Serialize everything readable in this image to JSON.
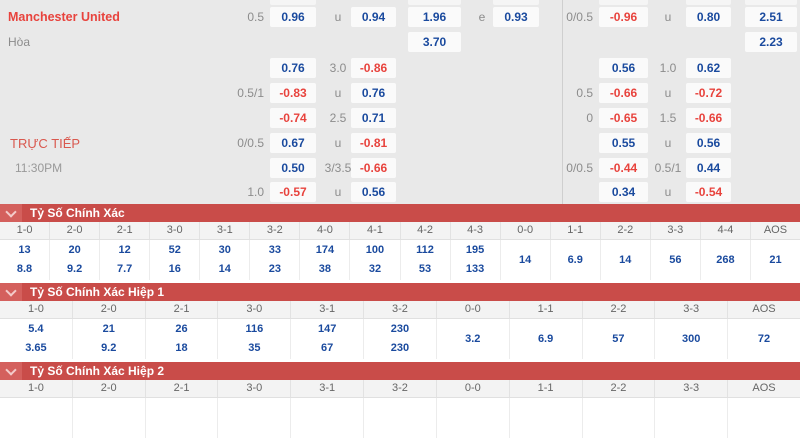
{
  "odds_panel": {
    "home_team": "Manchester United",
    "draw_label": "Hòa",
    "live_label": "TRỰC TIẾP",
    "time_label": "11:30PM",
    "rows": [
      {
        "hdp": "0.5",
        "hdp_odds": "0.96",
        "ou": "u",
        "ou_odds": "0.94",
        "x12": "1.96",
        "eh": "e",
        "eh_odds": "0.93",
        "r_hdp": "0/0.5",
        "r_hdp_odds": "-0.96",
        "r_ou": "u",
        "r_ou_odds": "0.80",
        "r_x12": "2.51"
      },
      {
        "x12": "3.70",
        "r_x12": "2.23"
      },
      {
        "hdp_odds": "0.76",
        "ou": "3.0",
        "ou_odds": "-0.86",
        "r_hdp_odds": "0.56",
        "r_ou": "1.0",
        "r_ou_odds": "0.62"
      },
      {
        "hdp": "0.5/1",
        "hdp_odds": "-0.83",
        "ou": "u",
        "ou_odds": "0.76",
        "r_hdp": "0.5",
        "r_hdp_odds": "-0.66",
        "r_ou": "u",
        "r_ou_odds": "-0.72"
      },
      {
        "hdp_odds": "-0.74",
        "ou": "2.5",
        "ou_odds": "0.71",
        "r_hdp": "0",
        "r_hdp_odds": "-0.65",
        "r_ou": "1.5",
        "r_ou_odds": "-0.66"
      },
      {
        "hdp": "0/0.5",
        "hdp_odds": "0.67",
        "ou": "u",
        "ou_odds": "-0.81",
        "r_hdp_odds": "0.55",
        "r_ou": "u",
        "r_ou_odds": "0.56"
      },
      {
        "hdp_odds": "0.50",
        "ou": "3/3.5",
        "ou_odds": "-0.66",
        "r_hdp": "0/0.5",
        "r_hdp_odds": "-0.44",
        "r_ou": "0.5/1",
        "r_ou_odds": "0.44"
      },
      {
        "hdp": "1.0",
        "hdp_odds": "-0.57",
        "ou": "u",
        "ou_odds": "0.56",
        "r_hdp_odds": "0.34",
        "r_ou": "u",
        "r_ou_odds": "-0.54"
      }
    ]
  },
  "sections": [
    {
      "title": "Tỷ Số Chính Xác",
      "columns": [
        {
          "score": "1-0",
          "odds": [
            "13",
            "8.8"
          ]
        },
        {
          "score": "2-0",
          "odds": [
            "20",
            "9.2"
          ]
        },
        {
          "score": "2-1",
          "odds": [
            "12",
            "7.7"
          ]
        },
        {
          "score": "3-0",
          "odds": [
            "52",
            "16"
          ]
        },
        {
          "score": "3-1",
          "odds": [
            "30",
            "14"
          ]
        },
        {
          "score": "3-2",
          "odds": [
            "33",
            "23"
          ]
        },
        {
          "score": "4-0",
          "odds": [
            "174",
            "38"
          ]
        },
        {
          "score": "4-1",
          "odds": [
            "100",
            "32"
          ]
        },
        {
          "score": "4-2",
          "odds": [
            "112",
            "53"
          ]
        },
        {
          "score": "4-3",
          "odds": [
            "195",
            "133"
          ]
        },
        {
          "score": "0-0",
          "odds": [
            "14"
          ]
        },
        {
          "score": "1-1",
          "odds": [
            "6.9"
          ]
        },
        {
          "score": "2-2",
          "odds": [
            "14"
          ]
        },
        {
          "score": "3-3",
          "odds": [
            "56"
          ]
        },
        {
          "score": "4-4",
          "odds": [
            "268"
          ]
        },
        {
          "score": "AOS",
          "odds": [
            "21"
          ]
        }
      ]
    },
    {
      "title": "Tỷ Số Chính Xác Hiệp 1",
      "columns": [
        {
          "score": "1-0",
          "odds": [
            "5.4",
            "3.65"
          ]
        },
        {
          "score": "2-0",
          "odds": [
            "21",
            "9.2"
          ]
        },
        {
          "score": "2-1",
          "odds": [
            "26",
            "18"
          ]
        },
        {
          "score": "3-0",
          "odds": [
            "116",
            "35"
          ]
        },
        {
          "score": "3-1",
          "odds": [
            "147",
            "67"
          ]
        },
        {
          "score": "3-2",
          "odds": [
            "230",
            "230"
          ]
        },
        {
          "score": "0-0",
          "odds": [
            "3.2"
          ]
        },
        {
          "score": "1-1",
          "odds": [
            "6.9"
          ]
        },
        {
          "score": "2-2",
          "odds": [
            "57"
          ]
        },
        {
          "score": "3-3",
          "odds": [
            "300"
          ]
        },
        {
          "score": "AOS",
          "odds": [
            "72"
          ]
        }
      ]
    },
    {
      "title": "Tỷ Số Chính Xác Hiệp 2",
      "columns": [
        {
          "score": "1-0",
          "odds": []
        },
        {
          "score": "2-0",
          "odds": []
        },
        {
          "score": "2-1",
          "odds": []
        },
        {
          "score": "3-0",
          "odds": []
        },
        {
          "score": "3-1",
          "odds": []
        },
        {
          "score": "3-2",
          "odds": []
        },
        {
          "score": "0-0",
          "odds": []
        },
        {
          "score": "1-1",
          "odds": []
        },
        {
          "score": "2-2",
          "odds": []
        },
        {
          "score": "3-3",
          "odds": []
        },
        {
          "score": "AOS",
          "odds": []
        }
      ]
    }
  ],
  "colors": {
    "positive_odds": "#1a4a9e",
    "negative_odds": "#e8433d",
    "section_bar": "#c94c49",
    "panel_background": "#e9e9e9"
  }
}
